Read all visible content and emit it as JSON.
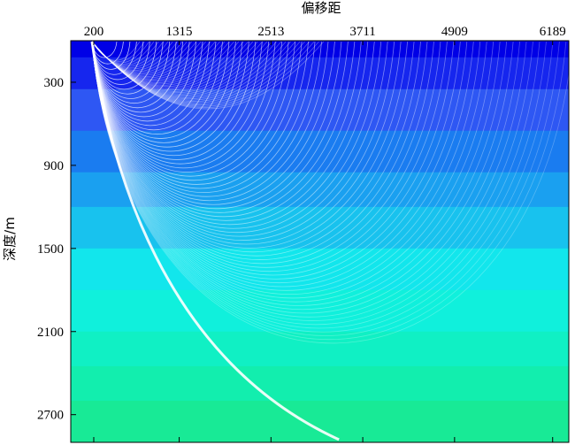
{
  "chart_data": {
    "type": "heatmap",
    "title": "",
    "xlabel": "偏移距",
    "ylabel": "深度/m",
    "x_axis_position": "top",
    "x_ticks": [
      200,
      1315,
      2513,
      3711,
      4909,
      6189
    ],
    "y_ticks": [
      300,
      900,
      1500,
      2100,
      2700
    ],
    "xlim": [
      -100,
      6400
    ],
    "ylim": [
      0,
      2900
    ],
    "y_inverted": true,
    "velocity_layers": [
      {
        "depth_top": 0,
        "depth_bottom": 120,
        "color": "#0000e6"
      },
      {
        "depth_top": 120,
        "depth_bottom": 350,
        "color": "#1626ee"
      },
      {
        "depth_top": 350,
        "depth_bottom": 650,
        "color": "#2e57f3"
      },
      {
        "depth_top": 650,
        "depth_bottom": 950,
        "color": "#1a7cf0"
      },
      {
        "depth_top": 950,
        "depth_bottom": 1200,
        "color": "#1aa0f0"
      },
      {
        "depth_top": 1200,
        "depth_bottom": 1500,
        "color": "#18c2ee"
      },
      {
        "depth_top": 1500,
        "depth_bottom": 1800,
        "color": "#12e6ec"
      },
      {
        "depth_top": 1800,
        "depth_bottom": 2100,
        "color": "#10f0dc"
      },
      {
        "depth_top": 2100,
        "depth_bottom": 2350,
        "color": "#10f0c4"
      },
      {
        "depth_top": 2350,
        "depth_bottom": 2600,
        "color": "#12eeae"
      },
      {
        "depth_top": 2600,
        "depth_bottom": 2900,
        "color": "#18ea96"
      }
    ],
    "raypath_color": "#ffffff",
    "grid": false,
    "legend": "none"
  }
}
